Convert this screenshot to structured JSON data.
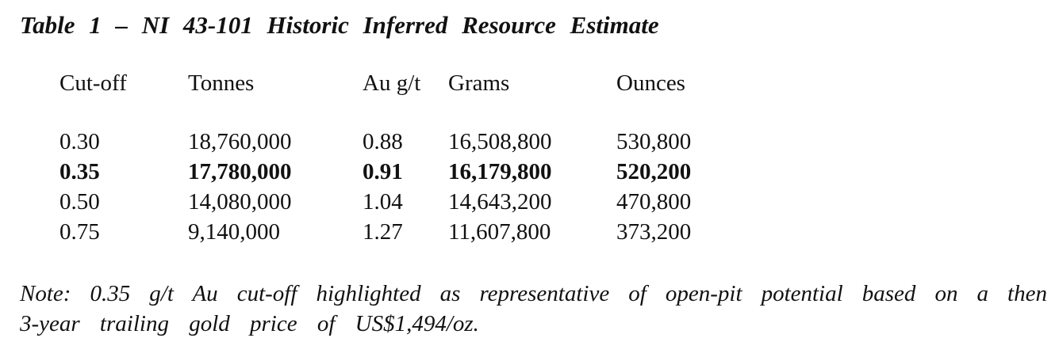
{
  "page": {
    "background_color": "#ffffff",
    "text_color": "#111111"
  },
  "title": "Table 1 – NI 43-101 Historic Inferred Resource Estimate",
  "table": {
    "columns": [
      "Cut-off",
      "Tonnes",
      "Au g/t",
      "Grams",
      "Ounces"
    ],
    "rows": [
      {
        "cells": [
          "0.30",
          "18,760,000",
          "0.88",
          "16,508,800",
          "530,800"
        ],
        "bold": false
      },
      {
        "cells": [
          "0.35",
          "17,780,000",
          "0.91",
          "16,179,800",
          "520,200"
        ],
        "bold": true
      },
      {
        "cells": [
          "0.50",
          "14,080,000",
          "1.04",
          "14,643,200",
          "470,800"
        ],
        "bold": false
      },
      {
        "cells": [
          "0.75",
          "9,140,000",
          "1.27",
          "11,607,800",
          "373,200"
        ],
        "bold": false
      }
    ],
    "highlighted_cutoff": "0.35"
  },
  "note": {
    "line1": "Note: 0.35 g/t Au cut-off highlighted as representative of open-pit potential based on a then",
    "line2": "3-year trailing gold price of US$1,494/oz."
  }
}
